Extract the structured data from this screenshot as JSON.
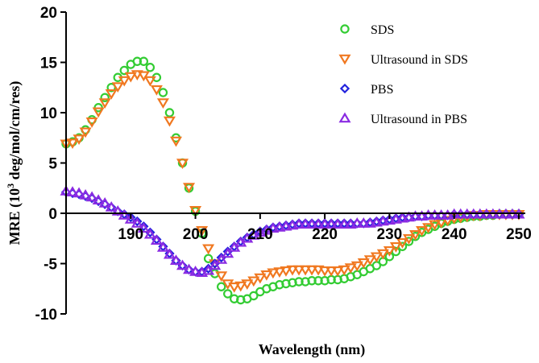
{
  "chart_data": {
    "type": "scatter",
    "title": "",
    "xlabel": "Wavelength (nm)",
    "ylabel_prefix": "MRE (10",
    "ylabel_sup": "3",
    "ylabel_suffix": " deg/mol/cm/res)",
    "xlim": [
      180,
      251
    ],
    "ylim": [
      -10,
      20
    ],
    "xticks": [
      190,
      200,
      210,
      220,
      230,
      240,
      250
    ],
    "yticks": [
      20,
      15,
      10,
      5,
      0,
      -5,
      -10
    ],
    "xtick_labels": [
      "190",
      "200",
      "210",
      "220",
      "230",
      "240",
      "250"
    ],
    "ytick_labels": [
      "20",
      "15",
      "10",
      "5",
      "0",
      "-5",
      "-10"
    ],
    "legend_position": "top-right",
    "grid": false,
    "x": [
      180,
      181,
      182,
      183,
      184,
      185,
      186,
      187,
      188,
      189,
      190,
      191,
      192,
      193,
      194,
      195,
      196,
      197,
      198,
      199,
      200,
      201,
      202,
      203,
      204,
      205,
      206,
      207,
      208,
      209,
      210,
      211,
      212,
      213,
      214,
      215,
      216,
      217,
      218,
      219,
      220,
      221,
      222,
      223,
      224,
      225,
      226,
      227,
      228,
      229,
      230,
      231,
      232,
      233,
      234,
      235,
      236,
      237,
      238,
      239,
      240,
      241,
      242,
      243,
      244,
      245,
      246,
      247,
      248,
      249,
      250
    ],
    "series": [
      {
        "name": "SDS",
        "marker": "circle",
        "color": "#33cc33",
        "values": [
          6.9,
          7.1,
          7.5,
          8.3,
          9.3,
          10.5,
          11.5,
          12.5,
          13.5,
          14.2,
          14.8,
          15.1,
          15.1,
          14.5,
          13.5,
          12.0,
          10.0,
          7.5,
          5.0,
          2.5,
          0.2,
          -2.0,
          -4.5,
          -6.0,
          -7.3,
          -8.0,
          -8.5,
          -8.6,
          -8.5,
          -8.2,
          -7.8,
          -7.5,
          -7.3,
          -7.1,
          -7.0,
          -6.9,
          -6.8,
          -6.8,
          -6.7,
          -6.7,
          -6.7,
          -6.6,
          -6.6,
          -6.5,
          -6.3,
          -6.1,
          -5.8,
          -5.5,
          -5.2,
          -4.8,
          -4.3,
          -3.8,
          -3.3,
          -2.8,
          -2.3,
          -1.9,
          -1.6,
          -1.3,
          -1.0,
          -0.8,
          -0.6,
          -0.5,
          -0.4,
          -0.3,
          -0.3,
          -0.2,
          -0.2,
          -0.1,
          -0.1,
          -0.1,
          -0.1
        ]
      },
      {
        "name": "Ultrasound in SDS",
        "marker": "triangle-down",
        "color": "#f07820",
        "values": [
          6.9,
          7.0,
          7.4,
          8.1,
          9.1,
          10.1,
          11.0,
          11.9,
          12.6,
          13.2,
          13.6,
          13.8,
          13.7,
          13.2,
          12.3,
          11.0,
          9.2,
          7.2,
          5.0,
          2.6,
          0.3,
          -1.7,
          -3.5,
          -5.0,
          -6.2,
          -7.0,
          -7.3,
          -7.2,
          -7.0,
          -6.7,
          -6.4,
          -6.1,
          -5.9,
          -5.8,
          -5.7,
          -5.6,
          -5.6,
          -5.6,
          -5.6,
          -5.6,
          -5.7,
          -5.7,
          -5.7,
          -5.6,
          -5.4,
          -5.2,
          -4.9,
          -4.6,
          -4.3,
          -4.0,
          -3.7,
          -3.3,
          -2.9,
          -2.5,
          -2.1,
          -1.7,
          -1.4,
          -1.1,
          -0.9,
          -0.7,
          -0.5,
          -0.4,
          -0.3,
          -0.2,
          -0.2,
          -0.1,
          -0.1,
          -0.1,
          -0.1,
          -0.1,
          -0.1
        ]
      },
      {
        "name": "PBS",
        "marker": "diamond",
        "color": "#2222dd",
        "values": [
          2.1,
          2.0,
          1.9,
          1.7,
          1.5,
          1.2,
          0.9,
          0.6,
          0.2,
          -0.1,
          -0.4,
          -0.8,
          -1.3,
          -1.9,
          -2.6,
          -3.3,
          -4.0,
          -4.7,
          -5.2,
          -5.6,
          -5.8,
          -5.8,
          -5.5,
          -5.0,
          -4.4,
          -3.8,
          -3.3,
          -2.8,
          -2.4,
          -2.1,
          -1.8,
          -1.6,
          -1.4,
          -1.3,
          -1.2,
          -1.1,
          -1.0,
          -1.0,
          -1.0,
          -1.0,
          -1.0,
          -1.0,
          -1.0,
          -1.0,
          -1.0,
          -1.0,
          -1.0,
          -0.9,
          -0.8,
          -0.7,
          -0.6,
          -0.5,
          -0.4,
          -0.4,
          -0.3,
          -0.3,
          -0.2,
          -0.2,
          -0.2,
          -0.2,
          -0.1,
          -0.1,
          -0.1,
          -0.1,
          -0.1,
          -0.1,
          -0.1,
          -0.1,
          -0.1,
          -0.1,
          -0.1
        ]
      },
      {
        "name": "Ultrasound in PBS",
        "marker": "triangle-up",
        "color": "#8a2be2",
        "values": [
          2.2,
          2.1,
          2.0,
          1.8,
          1.6,
          1.3,
          1.0,
          0.6,
          0.2,
          -0.2,
          -0.6,
          -1.0,
          -1.5,
          -2.1,
          -2.7,
          -3.4,
          -4.1,
          -4.7,
          -5.2,
          -5.6,
          -5.8,
          -5.9,
          -5.7,
          -5.2,
          -4.6,
          -4.0,
          -3.4,
          -2.9,
          -2.5,
          -2.2,
          -1.9,
          -1.7,
          -1.5,
          -1.4,
          -1.3,
          -1.2,
          -1.1,
          -1.1,
          -1.1,
          -1.1,
          -1.1,
          -1.1,
          -1.1,
          -1.1,
          -1.1,
          -1.0,
          -1.0,
          -1.0,
          -0.9,
          -0.8,
          -0.7,
          -0.6,
          -0.5,
          -0.4,
          -0.3,
          -0.3,
          -0.2,
          -0.2,
          -0.2,
          -0.2,
          -0.1,
          -0.1,
          -0.1,
          -0.1,
          -0.1,
          -0.1,
          -0.1,
          -0.1,
          -0.1,
          -0.1,
          -0.1
        ]
      }
    ]
  }
}
